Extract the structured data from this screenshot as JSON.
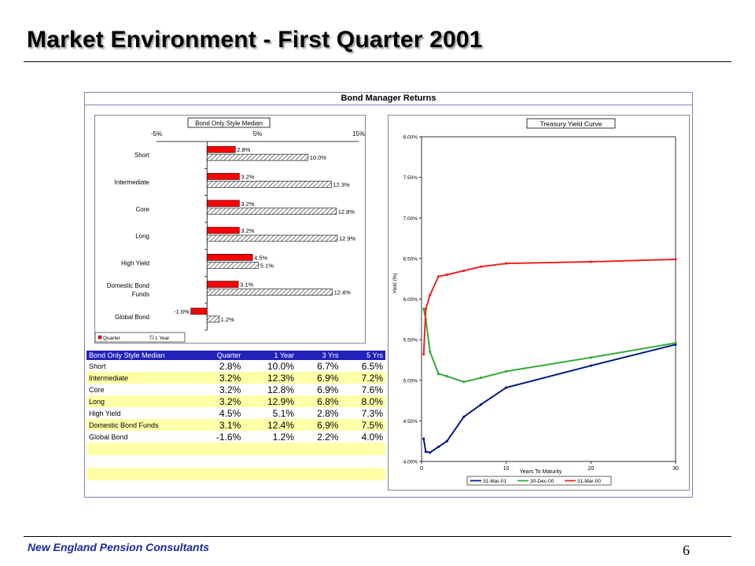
{
  "slide": {
    "title": "Market Environment - First Quarter 2001",
    "footer": "New England Pension Consultants",
    "page_number": "6",
    "panel_title": "Bond Manager Returns"
  },
  "table": {
    "headers": [
      "Bond Only Style Median",
      "Quarter",
      "1 Year",
      "3 Yrs",
      "5 Yrs"
    ],
    "rows": [
      {
        "name": "Short",
        "values": [
          "2.8%",
          "10.0%",
          "6.7%",
          "6.5%"
        ]
      },
      {
        "name": "Intermediate",
        "values": [
          "3.2%",
          "12.3%",
          "6.9%",
          "7.2%"
        ]
      },
      {
        "name": "Core",
        "values": [
          "3.2%",
          "12.8%",
          "6.9%",
          "7.6%"
        ]
      },
      {
        "name": "Long",
        "values": [
          "3.2%",
          "12.9%",
          "6.8%",
          "8.0%"
        ]
      },
      {
        "name": "High Yield",
        "values": [
          "4.5%",
          "5.1%",
          "2.8%",
          "7.3%"
        ]
      },
      {
        "name": "Domestic Bond Funds",
        "values": [
          "3.1%",
          "12.4%",
          "6.9%",
          "7.5%"
        ]
      },
      {
        "name": "Global Bond",
        "values": [
          "-1.6%",
          "1.2%",
          "2.2%",
          "4.0%"
        ]
      }
    ]
  },
  "chart_data": [
    {
      "type": "bar",
      "orientation": "horizontal",
      "title": "Bond Only Style Median",
      "categories": [
        "Short",
        "Intermediate",
        "Core",
        "Long",
        "High Yield",
        "Domestic Bond Funds",
        "Global Bond"
      ],
      "category_lines": [
        [
          "Short"
        ],
        [
          "Intermediate"
        ],
        [
          "Core"
        ],
        [
          "Long"
        ],
        [
          "High Yield"
        ],
        [
          "Domestic Bond",
          "Funds"
        ],
        [
          "Global Bond"
        ]
      ],
      "series": [
        {
          "name": "Quarter",
          "values": [
            2.8,
            3.2,
            3.2,
            3.2,
            4.5,
            3.1,
            -1.6
          ],
          "labels": [
            "2.8%",
            "3.2%",
            "3.2%",
            "3.2%",
            "4.5%",
            "3.1%",
            "-1.6%"
          ],
          "color": "#ff0000"
        },
        {
          "name": "1 Year",
          "values": [
            10.0,
            12.3,
            12.8,
            12.9,
            5.1,
            12.4,
            1.2
          ],
          "labels": [
            "10.0%",
            "12.3%",
            "12.8%",
            "12.9%",
            "5.1%",
            "12.4%",
            "1.2%"
          ],
          "color": "#d0d0d0",
          "pattern": "hatch"
        }
      ],
      "xlim": [
        -5,
        15
      ],
      "xticks": [
        -5,
        5,
        15
      ],
      "xtick_labels": [
        "-5%",
        "5%",
        "15%"
      ],
      "axis_position": "top",
      "legend": "bottom-left"
    },
    {
      "type": "line",
      "title": "Treasury Yield Curve",
      "xlabel": "Years To Maturity",
      "ylabel": "Yield (%)",
      "xlim": [
        0,
        30
      ],
      "ylim": [
        4.0,
        8.0
      ],
      "xticks": [
        0,
        10,
        20,
        30
      ],
      "xtick_labels": [
        "0",
        "10",
        "20",
        "30"
      ],
      "yticks": [
        4.0,
        4.5,
        5.0,
        5.5,
        6.0,
        6.5,
        7.0,
        7.5,
        8.0
      ],
      "ytick_labels": [
        "4.00%",
        "4.50%",
        "5.00%",
        "5.50%",
        "6.00%",
        "6.50%",
        "7.00%",
        "7.50%",
        "8.00%"
      ],
      "legend": "bottom",
      "series": [
        {
          "name": "31-Mar-01",
          "color": "#001a80",
          "marker": "diamond",
          "x": [
            0.25,
            0.5,
            1,
            2,
            3,
            5,
            7,
            10,
            20,
            30
          ],
          "y": [
            4.28,
            4.12,
            4.11,
            4.18,
            4.25,
            4.55,
            4.7,
            4.91,
            5.18,
            5.44
          ]
        },
        {
          "name": "30-Dec-00",
          "color": "#33aa33",
          "marker": "triangle",
          "x": [
            0.25,
            0.5,
            1,
            2,
            3,
            5,
            7,
            10,
            20,
            30
          ],
          "y": [
            5.88,
            5.75,
            5.35,
            5.08,
            5.05,
            4.98,
            5.03,
            5.11,
            5.28,
            5.46
          ]
        },
        {
          "name": "31-Mar-00",
          "color": "#ee2222",
          "marker": "square",
          "x": [
            0.25,
            0.5,
            1,
            2,
            3,
            5,
            7,
            10,
            20,
            30
          ],
          "y": [
            5.32,
            5.88,
            6.05,
            6.28,
            6.3,
            6.35,
            6.4,
            6.44,
            6.46,
            6.49
          ]
        }
      ]
    }
  ]
}
